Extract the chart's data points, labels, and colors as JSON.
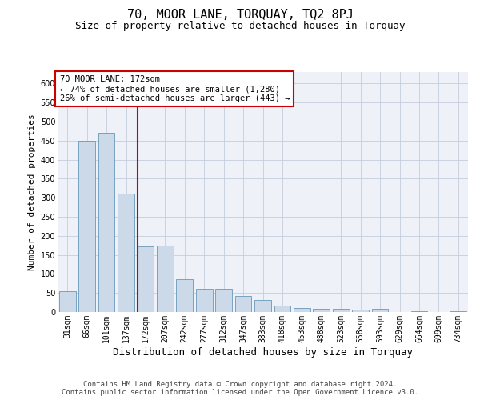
{
  "title": "70, MOOR LANE, TORQUAY, TQ2 8PJ",
  "subtitle": "Size of property relative to detached houses in Torquay",
  "xlabel": "Distribution of detached houses by size in Torquay",
  "ylabel": "Number of detached properties",
  "categories": [
    "31sqm",
    "66sqm",
    "101sqm",
    "137sqm",
    "172sqm",
    "207sqm",
    "242sqm",
    "277sqm",
    "312sqm",
    "347sqm",
    "383sqm",
    "418sqm",
    "453sqm",
    "488sqm",
    "523sqm",
    "558sqm",
    "593sqm",
    "629sqm",
    "664sqm",
    "699sqm",
    "734sqm"
  ],
  "values": [
    55,
    450,
    470,
    310,
    172,
    175,
    87,
    60,
    60,
    43,
    32,
    16,
    10,
    8,
    8,
    7,
    8,
    0,
    3,
    0,
    3
  ],
  "bar_color": "#ccd9e8",
  "bar_edge_color": "#6699bb",
  "grid_color": "#c5ccdc",
  "background_color": "#eef1f8",
  "vline_color": "#cc0000",
  "vline_index": 4,
  "annotation_line1": "70 MOOR LANE: 172sqm",
  "annotation_line2": "← 74% of detached houses are smaller (1,280)",
  "annotation_line3": "26% of semi-detached houses are larger (443) →",
  "annotation_box_color": "#ffffff",
  "annotation_box_edge_color": "#cc0000",
  "footer_line1": "Contains HM Land Registry data © Crown copyright and database right 2024.",
  "footer_line2": "Contains public sector information licensed under the Open Government Licence v3.0.",
  "ylim": [
    0,
    630
  ],
  "yticks": [
    0,
    50,
    100,
    150,
    200,
    250,
    300,
    350,
    400,
    450,
    500,
    550,
    600
  ],
  "title_fontsize": 11,
  "subtitle_fontsize": 9,
  "xlabel_fontsize": 9,
  "ylabel_fontsize": 8,
  "tick_fontsize": 7,
  "annotation_fontsize": 7.5,
  "footer_fontsize": 6.5
}
